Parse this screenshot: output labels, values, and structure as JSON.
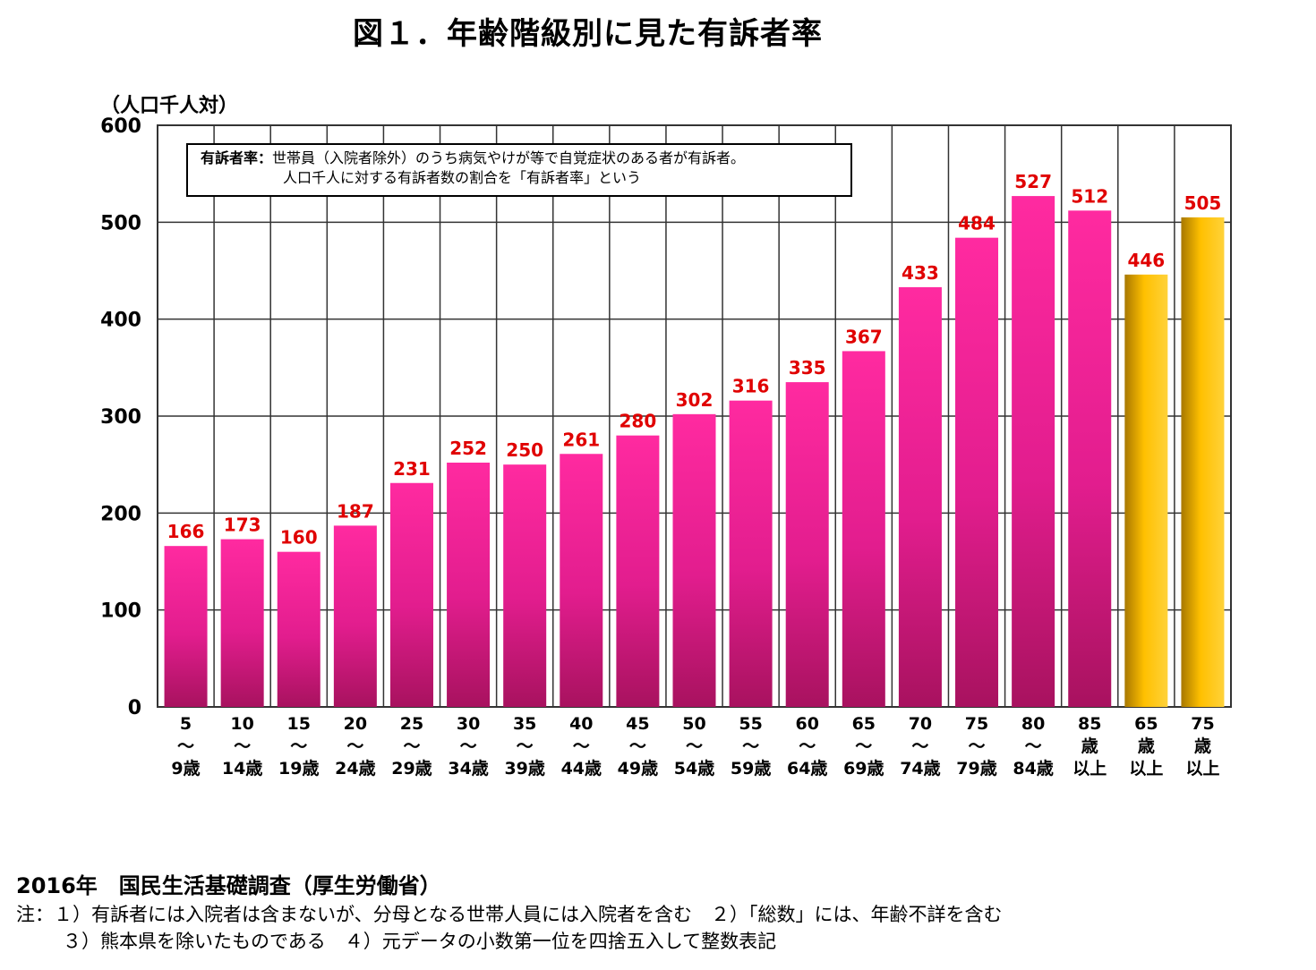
{
  "title": "図１．年齢階級別に見た有訴者率",
  "unit_label": "（人口千人対）",
  "definition": {
    "key": "有訴者率：",
    "line1": "世帯員（入院者除外）のうち病気やけが等で自覚症状のある者が有訴者。",
    "line2": "人口千人に対する有訴者数の割合を「有訴者率」という"
  },
  "source": "2016年　国民生活基礎調査（厚生労働省）",
  "footnotes": {
    "line1": "注：１）有訴者には入院者は含まないが、分母となる世帯人員には入院者を含む　２）「総数」には、年齢不詳を含む",
    "line2": "３）熊本県を除いたものである　４）元データの小数第一位を四捨五入して整数表記"
  },
  "colors": {
    "bar_magenta": "#ff2aa0",
    "bar_gold": "#ffc000",
    "data_label": "#e00000",
    "grid": "#333333"
  },
  "chart_data": {
    "type": "bar",
    "categories": [
      [
        "5",
        "～",
        "9歳"
      ],
      [
        "10",
        "～",
        "14歳"
      ],
      [
        "15",
        "～",
        "19歳"
      ],
      [
        "20",
        "～",
        "24歳"
      ],
      [
        "25",
        "～",
        "29歳"
      ],
      [
        "30",
        "～",
        "34歳"
      ],
      [
        "35",
        "～",
        "39歳"
      ],
      [
        "40",
        "～",
        "44歳"
      ],
      [
        "45",
        "～",
        "49歳"
      ],
      [
        "50",
        "～",
        "54歳"
      ],
      [
        "55",
        "～",
        "59歳"
      ],
      [
        "60",
        "～",
        "64歳"
      ],
      [
        "65",
        "～",
        "69歳"
      ],
      [
        "70",
        "～",
        "74歳"
      ],
      [
        "75",
        "～",
        "79歳"
      ],
      [
        "80",
        "～",
        "84歳"
      ],
      [
        "85",
        "歳",
        "以上"
      ],
      [
        "65",
        "歳",
        "以上"
      ],
      [
        "75",
        "歳",
        "以上"
      ]
    ],
    "values": [
      166,
      173,
      160,
      187,
      231,
      252,
      250,
      261,
      280,
      302,
      316,
      335,
      367,
      433,
      484,
      527,
      512,
      446,
      505
    ],
    "bar_colors": [
      "magenta",
      "magenta",
      "magenta",
      "magenta",
      "magenta",
      "magenta",
      "magenta",
      "magenta",
      "magenta",
      "magenta",
      "magenta",
      "magenta",
      "magenta",
      "magenta",
      "magenta",
      "magenta",
      "magenta",
      "gold",
      "gold"
    ],
    "ylim": [
      0,
      600
    ],
    "yticks": [
      0,
      100,
      200,
      300,
      400,
      500,
      600
    ],
    "grid": true
  }
}
